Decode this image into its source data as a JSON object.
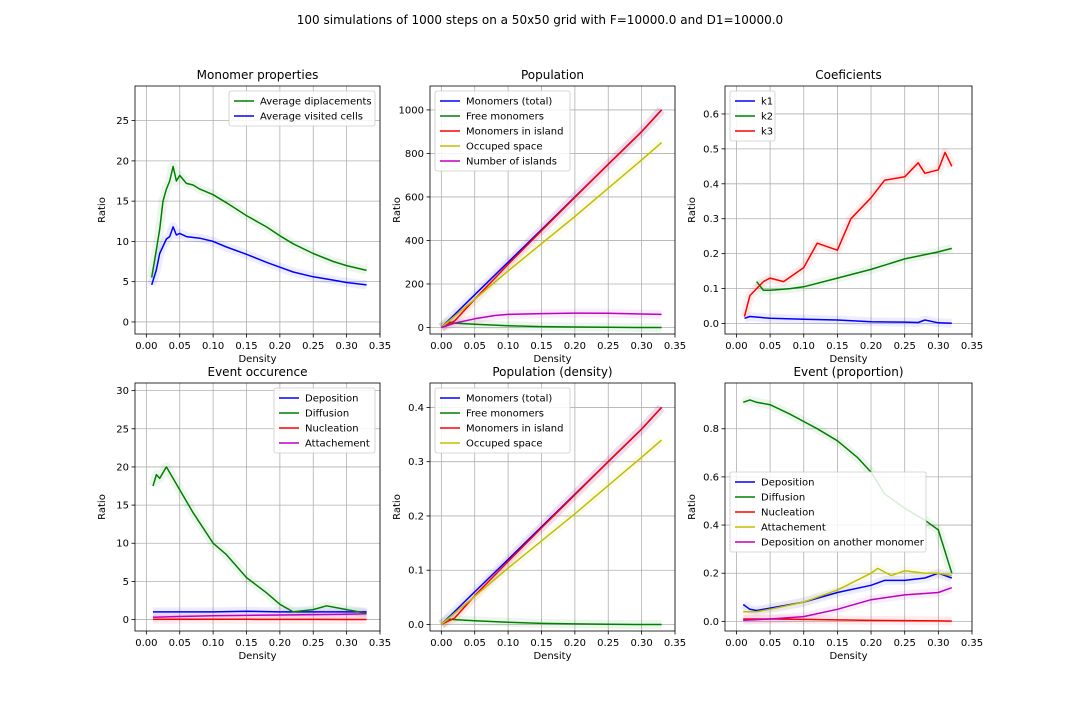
{
  "figure": {
    "suptitle": "100 simulations of 1000 steps on a 50x50 grid with F=10000.0 and D1=10000.0"
  },
  "chart_data": [
    {
      "type": "line",
      "title": "Monomer properties",
      "xlabel": "Density",
      "ylabel": "Ratio",
      "xlim": [
        -0.017,
        0.35
      ],
      "ylim": [
        -1.5,
        29.3
      ],
      "xticks": [
        "0.00",
        "0.05",
        "0.10",
        "0.15",
        "0.20",
        "0.25",
        "0.30",
        "0.35"
      ],
      "yticks": [
        "0",
        "5",
        "10",
        "15",
        "20",
        "25"
      ],
      "grid": true,
      "legend": "top-right",
      "series": [
        {
          "name": "Average diplacements",
          "color": "#008000",
          "x": [
            0.008,
            0.015,
            0.02,
            0.025,
            0.03,
            0.035,
            0.04,
            0.045,
            0.05,
            0.06,
            0.07,
            0.08,
            0.1,
            0.12,
            0.15,
            0.18,
            0.2,
            0.22,
            0.25,
            0.28,
            0.3,
            0.33
          ],
          "y": [
            5.5,
            9.0,
            11.5,
            15.0,
            16.5,
            17.5,
            19.3,
            17.5,
            18.2,
            17.2,
            17.0,
            16.5,
            15.8,
            14.8,
            13.2,
            11.8,
            10.7,
            9.7,
            8.5,
            7.5,
            7.0,
            6.4
          ]
        },
        {
          "name": "Average visited cells",
          "color": "#0000ff",
          "x": [
            0.008,
            0.015,
            0.02,
            0.03,
            0.035,
            0.04,
            0.045,
            0.05,
            0.06,
            0.08,
            0.1,
            0.12,
            0.15,
            0.18,
            0.2,
            0.22,
            0.25,
            0.28,
            0.3,
            0.33
          ],
          "y": [
            4.6,
            6.5,
            8.5,
            10.3,
            10.6,
            11.8,
            10.8,
            11.0,
            10.6,
            10.4,
            10.0,
            9.3,
            8.4,
            7.4,
            6.8,
            6.2,
            5.6,
            5.2,
            4.9,
            4.6
          ]
        }
      ]
    },
    {
      "type": "line",
      "title": "Population",
      "xlabel": "Density",
      "ylabel": "Ratio",
      "xlim": [
        -0.017,
        0.35
      ],
      "ylim": [
        -30,
        1110
      ],
      "xticks": [
        "0.00",
        "0.05",
        "0.10",
        "0.15",
        "0.20",
        "0.25",
        "0.30",
        "0.35"
      ],
      "yticks": [
        "0",
        "200",
        "400",
        "600",
        "800",
        "1000"
      ],
      "grid": true,
      "legend": "top-left",
      "series": [
        {
          "name": "Monomers (total)",
          "color": "#0000ff",
          "x": [
            0,
            0.05,
            0.1,
            0.15,
            0.2,
            0.25,
            0.3,
            0.33
          ],
          "y": [
            0,
            150,
            300,
            450,
            600,
            750,
            900,
            1000
          ]
        },
        {
          "name": "Free monomers",
          "color": "#008000",
          "x": [
            0,
            0.01,
            0.02,
            0.05,
            0.1,
            0.15,
            0.2,
            0.25,
            0.3,
            0.33
          ],
          "y": [
            0,
            25,
            20,
            15,
            8,
            4,
            2,
            1,
            0,
            0
          ]
        },
        {
          "name": "Monomers in island",
          "color": "#ff0000",
          "x": [
            0,
            0.02,
            0.05,
            0.1,
            0.15,
            0.2,
            0.25,
            0.3,
            0.33
          ],
          "y": [
            0,
            30,
            130,
            290,
            445,
            598,
            750,
            900,
            1000
          ]
        },
        {
          "name": "Occuped space",
          "color": "#bfbf00",
          "x": [
            0,
            0.05,
            0.1,
            0.15,
            0.2,
            0.25,
            0.3,
            0.33
          ],
          "y": [
            0,
            130,
            260,
            385,
            510,
            640,
            770,
            850
          ]
        },
        {
          "name": "Number of islands",
          "color": "#bf00bf",
          "x": [
            0,
            0.02,
            0.05,
            0.08,
            0.1,
            0.15,
            0.2,
            0.25,
            0.3,
            0.33
          ],
          "y": [
            0,
            20,
            40,
            55,
            60,
            64,
            66,
            65,
            62,
            60
          ]
        }
      ]
    },
    {
      "type": "line",
      "title": "Coeficients",
      "xlabel": "Density",
      "ylabel": "Ratio",
      "xlim": [
        -0.017,
        0.35
      ],
      "ylim": [
        -0.03,
        0.68
      ],
      "xticks": [
        "0.00",
        "0.05",
        "0.10",
        "0.15",
        "0.20",
        "0.25",
        "0.30",
        "0.35"
      ],
      "yticks": [
        "0.0",
        "0.1",
        "0.2",
        "0.3",
        "0.4",
        "0.5",
        "0.6"
      ],
      "grid": true,
      "legend": "top-left",
      "series": [
        {
          "name": "k1",
          "color": "#0000ff",
          "x": [
            0.012,
            0.02,
            0.05,
            0.1,
            0.15,
            0.2,
            0.25,
            0.27,
            0.28,
            0.3,
            0.32
          ],
          "y": [
            0.015,
            0.02,
            0.015,
            0.012,
            0.01,
            0.005,
            0.004,
            0.003,
            0.01,
            0.002,
            0.001
          ]
        },
        {
          "name": "k2",
          "color": "#008000",
          "x": [
            0.03,
            0.04,
            0.05,
            0.08,
            0.1,
            0.15,
            0.2,
            0.25,
            0.3,
            0.32
          ],
          "y": [
            0.12,
            0.095,
            0.095,
            0.1,
            0.105,
            0.13,
            0.155,
            0.185,
            0.205,
            0.215
          ]
        },
        {
          "name": "k3",
          "color": "#ff0000",
          "x": [
            0.012,
            0.02,
            0.03,
            0.04,
            0.05,
            0.07,
            0.1,
            0.12,
            0.15,
            0.17,
            0.2,
            0.22,
            0.25,
            0.27,
            0.28,
            0.3,
            0.31,
            0.32
          ],
          "y": [
            0.02,
            0.08,
            0.1,
            0.12,
            0.13,
            0.12,
            0.16,
            0.23,
            0.21,
            0.3,
            0.36,
            0.41,
            0.42,
            0.46,
            0.43,
            0.44,
            0.49,
            0.45
          ]
        }
      ]
    },
    {
      "type": "line",
      "title": "Event occurence",
      "xlabel": "Density",
      "ylabel": "Ratio",
      "xlim": [
        -0.017,
        0.35
      ],
      "ylim": [
        -1.5,
        31
      ],
      "xticks": [
        "0.00",
        "0.05",
        "0.10",
        "0.15",
        "0.20",
        "0.25",
        "0.30",
        "0.35"
      ],
      "yticks": [
        "0",
        "5",
        "10",
        "15",
        "20",
        "25",
        "30"
      ],
      "grid": true,
      "legend": "top-right",
      "series": [
        {
          "name": "Deposition",
          "color": "#0000ff",
          "x": [
            0.01,
            0.05,
            0.1,
            0.15,
            0.2,
            0.25,
            0.3,
            0.33
          ],
          "y": [
            1.0,
            1.0,
            1.0,
            1.1,
            1.0,
            1.0,
            1.0,
            1.0
          ]
        },
        {
          "name": "Diffusion",
          "color": "#008000",
          "x": [
            0.01,
            0.015,
            0.02,
            0.03,
            0.04,
            0.05,
            0.07,
            0.1,
            0.12,
            0.15,
            0.18,
            0.2,
            0.22,
            0.25,
            0.27,
            0.3,
            0.33
          ],
          "y": [
            17.5,
            19.0,
            18.5,
            20.0,
            18.5,
            17.0,
            14.0,
            10.0,
            8.5,
            5.5,
            3.5,
            2.0,
            1.0,
            1.3,
            1.8,
            1.3,
            0.8
          ]
        },
        {
          "name": "Nucleation",
          "color": "#ff0000",
          "x": [
            0.01,
            0.05,
            0.1,
            0.15,
            0.2,
            0.25,
            0.3,
            0.33
          ],
          "y": [
            0.05,
            0.05,
            0.04,
            0.03,
            0.02,
            0.02,
            0.01,
            0.01
          ]
        },
        {
          "name": "Attachement",
          "color": "#bf00bf",
          "x": [
            0.01,
            0.05,
            0.1,
            0.15,
            0.2,
            0.25,
            0.3,
            0.33
          ],
          "y": [
            0.3,
            0.4,
            0.5,
            0.55,
            0.6,
            0.65,
            0.7,
            0.75
          ]
        }
      ]
    },
    {
      "type": "line",
      "title": "Population (density)",
      "xlabel": "Density",
      "ylabel": "Ratio",
      "xlim": [
        -0.017,
        0.35
      ],
      "ylim": [
        -0.012,
        0.445
      ],
      "xticks": [
        "0.00",
        "0.05",
        "0.10",
        "0.15",
        "0.20",
        "0.25",
        "0.30",
        "0.35"
      ],
      "yticks": [
        "0.0",
        "0.1",
        "0.2",
        "0.3",
        "0.4"
      ],
      "grid": true,
      "legend": "top-left",
      "series": [
        {
          "name": "Monomers (total)",
          "color": "#0000ff",
          "x": [
            0,
            0.05,
            0.1,
            0.15,
            0.2,
            0.25,
            0.3,
            0.33
          ],
          "y": [
            0,
            0.06,
            0.12,
            0.18,
            0.24,
            0.3,
            0.36,
            0.4
          ]
        },
        {
          "name": "Free monomers",
          "color": "#008000",
          "x": [
            0,
            0.01,
            0.02,
            0.05,
            0.1,
            0.15,
            0.2,
            0.25,
            0.3,
            0.33
          ],
          "y": [
            0,
            0.01,
            0.009,
            0.007,
            0.004,
            0.002,
            0.001,
            0.0005,
            0,
            0
          ]
        },
        {
          "name": "Monomers in island",
          "color": "#ff0000",
          "x": [
            0,
            0.02,
            0.05,
            0.1,
            0.15,
            0.2,
            0.25,
            0.3,
            0.33
          ],
          "y": [
            0,
            0.012,
            0.053,
            0.116,
            0.178,
            0.239,
            0.3,
            0.36,
            0.4
          ]
        },
        {
          "name": "Occuped space",
          "color": "#bfbf00",
          "x": [
            0,
            0.05,
            0.1,
            0.15,
            0.2,
            0.25,
            0.3,
            0.33
          ],
          "y": [
            0,
            0.052,
            0.104,
            0.154,
            0.204,
            0.256,
            0.308,
            0.34
          ]
        }
      ]
    },
    {
      "type": "line",
      "title": "Event (proportion)",
      "xlabel": "Density",
      "ylabel": "Ratio",
      "xlim": [
        -0.017,
        0.35
      ],
      "ylim": [
        -0.04,
        0.99
      ],
      "xticks": [
        "0.00",
        "0.05",
        "0.10",
        "0.15",
        "0.20",
        "0.25",
        "0.30",
        "0.35"
      ],
      "yticks": [
        "0.0",
        "0.2",
        "0.4",
        "0.6",
        "0.8"
      ],
      "grid": true,
      "legend": "center-left",
      "series": [
        {
          "name": "Deposition",
          "color": "#0000ff",
          "x": [
            0.01,
            0.02,
            0.03,
            0.05,
            0.1,
            0.15,
            0.2,
            0.22,
            0.25,
            0.28,
            0.3,
            0.32
          ],
          "y": [
            0.07,
            0.05,
            0.045,
            0.055,
            0.08,
            0.12,
            0.15,
            0.17,
            0.17,
            0.18,
            0.2,
            0.18
          ]
        },
        {
          "name": "Diffusion",
          "color": "#008000",
          "x": [
            0.01,
            0.02,
            0.03,
            0.05,
            0.08,
            0.1,
            0.12,
            0.15,
            0.18,
            0.2,
            0.22,
            0.25,
            0.28,
            0.3,
            0.32
          ],
          "y": [
            0.91,
            0.92,
            0.91,
            0.9,
            0.86,
            0.83,
            0.8,
            0.75,
            0.68,
            0.62,
            0.53,
            0.47,
            0.42,
            0.38,
            0.2
          ]
        },
        {
          "name": "Nucleation",
          "color": "#ff0000",
          "x": [
            0.01,
            0.05,
            0.1,
            0.15,
            0.2,
            0.25,
            0.3,
            0.32
          ],
          "y": [
            0.01,
            0.01,
            0.008,
            0.006,
            0.004,
            0.003,
            0.002,
            0.001
          ]
        },
        {
          "name": "Attachement",
          "color": "#bfbf00",
          "x": [
            0.01,
            0.03,
            0.05,
            0.1,
            0.15,
            0.2,
            0.21,
            0.23,
            0.25,
            0.28,
            0.3,
            0.32
          ],
          "y": [
            0.04,
            0.04,
            0.05,
            0.08,
            0.13,
            0.2,
            0.22,
            0.19,
            0.21,
            0.2,
            0.2,
            0.19
          ]
        },
        {
          "name": "Deposition on another monomer",
          "color": "#bf00bf",
          "x": [
            0.01,
            0.05,
            0.1,
            0.15,
            0.2,
            0.25,
            0.3,
            0.32
          ],
          "y": [
            0.005,
            0.01,
            0.02,
            0.05,
            0.09,
            0.11,
            0.12,
            0.14
          ]
        }
      ]
    }
  ]
}
